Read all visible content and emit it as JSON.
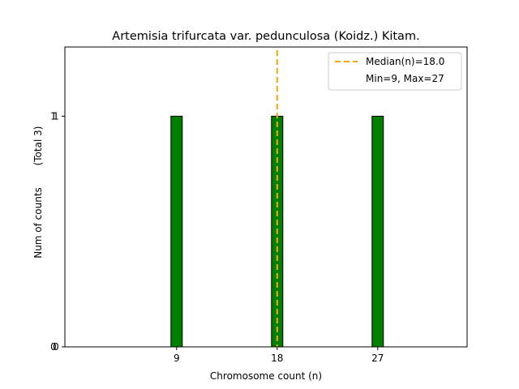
{
  "chart_data": {
    "type": "bar",
    "title": "Artemisia trifurcata var. pedunculosa (Koidz.) Kitam.",
    "xlabel": "Chromosome count (n)",
    "ylabel": "Num of counts",
    "ylabel_note": "(Total 3)",
    "xlim": [
      -1,
      35
    ],
    "ylim": [
      0,
      1.3
    ],
    "x_ticks": [
      9,
      18,
      27
    ],
    "y_ticks": [
      0,
      1
    ],
    "bars": [
      {
        "x": 9,
        "value": 1
      },
      {
        "x": 18,
        "value": 1
      },
      {
        "x": 27,
        "value": 1
      }
    ],
    "baseline_range": [
      1,
      31
    ],
    "median": 18.0,
    "legend": {
      "placement": "top-right",
      "entries": [
        "Median(n)=18.0",
        "Min=9, Max=27"
      ]
    },
    "colors": {
      "bar_fill": "#008000",
      "bar_edge": "#000000",
      "median_line": "#FFA500"
    },
    "grid": false
  }
}
